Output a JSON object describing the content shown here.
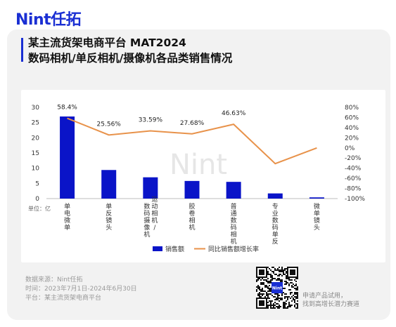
{
  "brand": {
    "logo": "Nint任拓",
    "watermark": "Nint"
  },
  "title": {
    "line1": "某主流货架电商平台 MAT2024",
    "line2": "数码相机/单反相机/摄像机各品类销售情况"
  },
  "colors": {
    "bar": "#0a14c8",
    "line": "#e8924a",
    "accent": "#1a2fd3"
  },
  "chart_data": {
    "type": "bar",
    "unit_label": "单位：亿",
    "categories": [
      "单电微单",
      "单反镜头",
      "数码摄像机/运动相机",
      "胶卷相机",
      "普通数码相机",
      "专业数码单反",
      "微单镜头"
    ],
    "category_lines": [
      [
        "单",
        "电",
        "微",
        "单"
      ],
      [
        "单",
        "反",
        "镜",
        "头"
      ],
      [
        "数",
        "码",
        "摄",
        "像",
        "机"
      ],
      [
        "胶",
        "卷",
        "相",
        "机"
      ],
      [
        "普",
        "通",
        "数",
        "码",
        "相",
        "机"
      ],
      [
        "专",
        "业",
        "数",
        "码",
        "单",
        "反"
      ],
      [
        "微",
        "单",
        "镜",
        "头"
      ]
    ],
    "category_lines_right": [
      [],
      [],
      [
        "运",
        "动",
        "相",
        "机",
        "/"
      ],
      [],
      [],
      [],
      []
    ],
    "series": [
      {
        "name": "销售额",
        "type": "bar",
        "axis": "left",
        "values": [
          27.0,
          9.4,
          7.0,
          5.8,
          5.5,
          1.7,
          0.4
        ]
      },
      {
        "name": "同比销售额增长率",
        "type": "line",
        "axis": "right",
        "values": [
          58.4,
          25.56,
          33.59,
          27.68,
          46.63,
          -31.0,
          0.0
        ]
      }
    ],
    "data_labels": [
      "58.4%",
      "25.56%",
      "33.59%",
      "27.68%",
      "46.63%",
      "",
      ""
    ],
    "y_left": {
      "ticks": [
        "0",
        "5",
        "10",
        "15",
        "20",
        "25",
        "30"
      ],
      "lim": [
        0,
        30
      ]
    },
    "y_right": {
      "ticks": [
        "-100%",
        "-80%",
        "-60%",
        "-40%",
        "-20%",
        "0%",
        "20%",
        "40%",
        "60%",
        "80%"
      ],
      "lim": [
        -100,
        80
      ]
    },
    "legend": {
      "position": "bottom-center"
    },
    "grid": false
  },
  "footer": {
    "source": "数据来源：Nint任拓",
    "period": "时间：2023年7月1日-2024年6月30日",
    "platform": "平台：某主流货架电商平台"
  },
  "qr": {
    "center_label": "Nint",
    "cta_line1": "申请产品试用，",
    "cta_line2": "找到高增长潜力赛道"
  }
}
